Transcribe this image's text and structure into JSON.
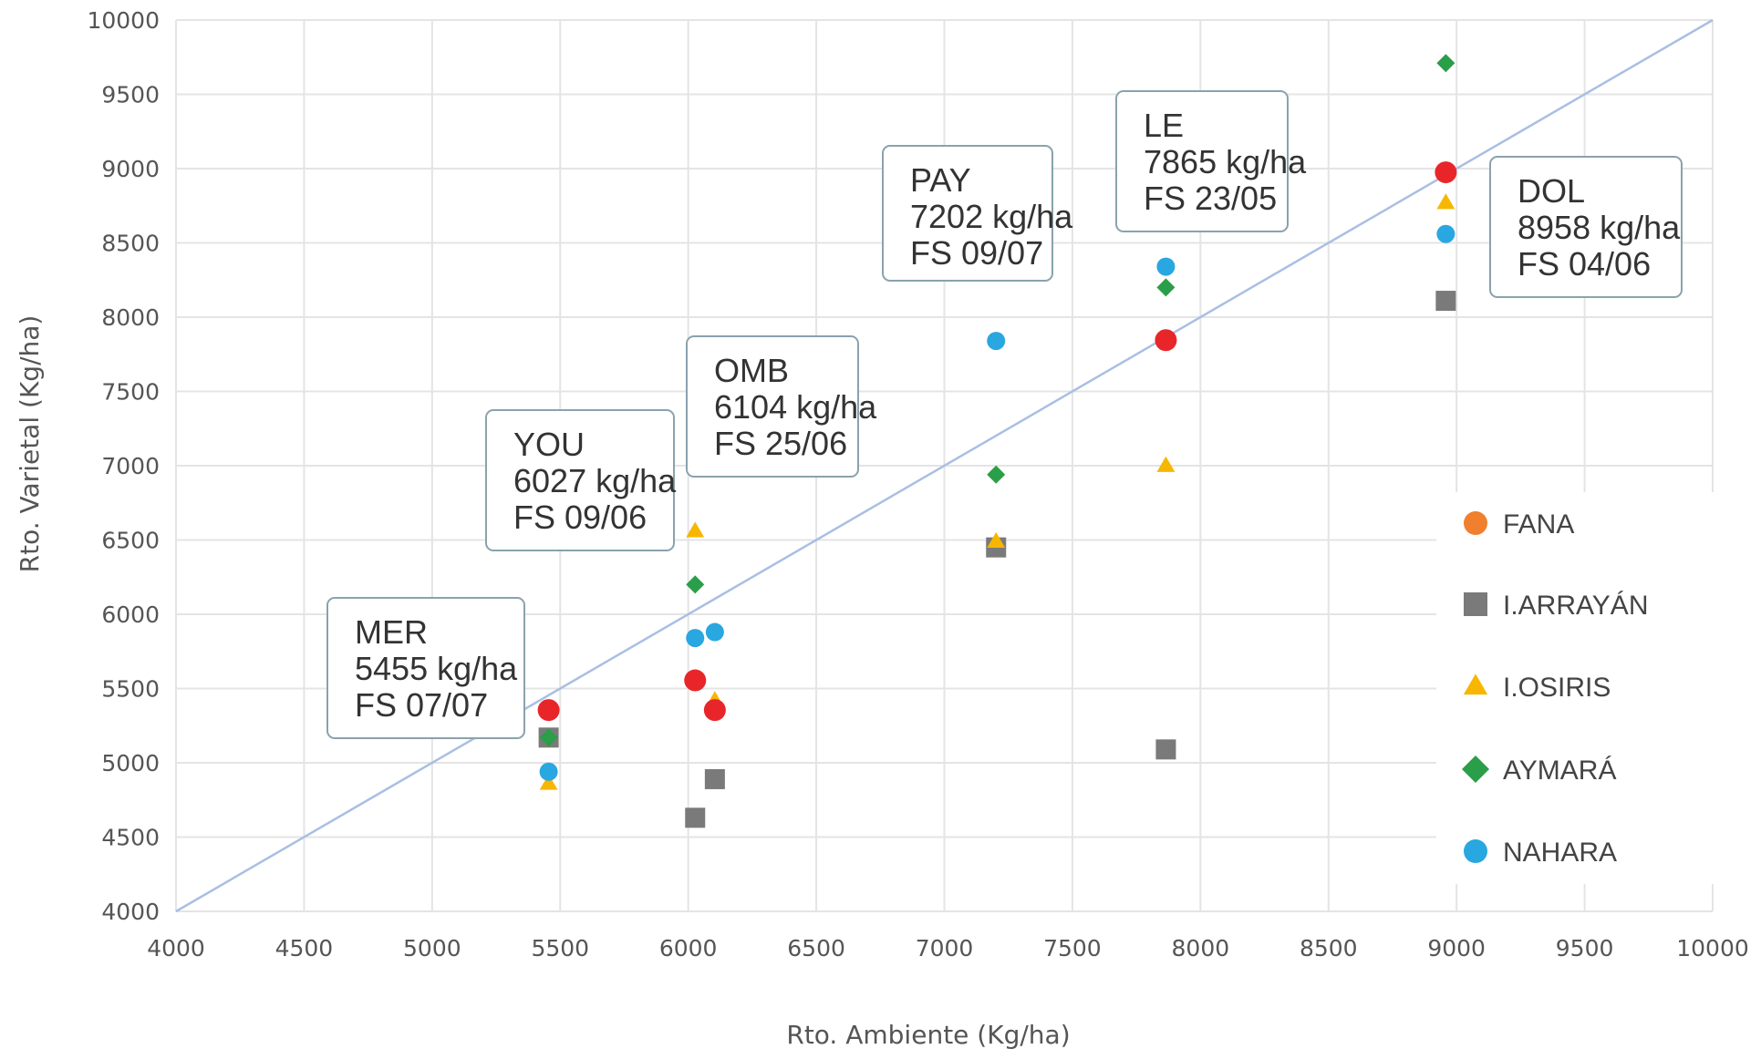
{
  "chart_data": {
    "type": "scatter",
    "xlabel": "Rto. Ambiente (Kg/ha)",
    "ylabel": "Rto. Varietal (Kg/ha)",
    "xlim": [
      4000,
      10000
    ],
    "ylim": [
      4000,
      10000
    ],
    "xticks": [
      "4000",
      "4500",
      "5000",
      "5500",
      "6000",
      "6500",
      "7000",
      "7500",
      "8000",
      "8500",
      "9000",
      "9500",
      "10000"
    ],
    "yticks": [
      "4000",
      "4500",
      "5000",
      "5500",
      "6000",
      "6500",
      "7000",
      "7500",
      "8000",
      "8500",
      "9000",
      "9500",
      "10000"
    ],
    "grid": true,
    "legend_position": "right",
    "reference_line": {
      "from": [
        4000,
        4000
      ],
      "to": [
        10000,
        10000
      ],
      "color": "#a9bfe3"
    },
    "series": [
      {
        "name": "FANA",
        "marker": "circle",
        "legend_color": "#f07f2e",
        "color": "#e8262a",
        "points": [
          [
            5455,
            5355
          ],
          [
            6027,
            5555
          ],
          [
            6104,
            5355
          ],
          [
            7865,
            7845
          ],
          [
            8958,
            8975
          ]
        ]
      },
      {
        "name": "I.ARRAYÁN",
        "marker": "square",
        "color": "#7a7a7a",
        "points": [
          [
            5455,
            5170
          ],
          [
            6027,
            4630
          ],
          [
            6104,
            4890
          ],
          [
            7202,
            6450
          ],
          [
            7865,
            5090
          ],
          [
            8958,
            8110
          ]
        ]
      },
      {
        "name": "I.OSIRIS",
        "marker": "triangle",
        "color": "#f7b600",
        "points": [
          [
            5455,
            4860
          ],
          [
            6027,
            6560
          ],
          [
            6104,
            5420
          ],
          [
            7202,
            6490
          ],
          [
            7865,
            7000
          ],
          [
            8958,
            8770
          ]
        ]
      },
      {
        "name": "AYMARÁ",
        "marker": "diamond",
        "color": "#2a9e48",
        "points": [
          [
            5455,
            5170
          ],
          [
            6027,
            6200
          ],
          [
            6104,
            5370
          ],
          [
            7202,
            6940
          ],
          [
            7865,
            8200
          ],
          [
            8958,
            9710
          ]
        ]
      },
      {
        "name": "NAHARA",
        "marker": "circle",
        "color": "#29a7e1",
        "points": [
          [
            5455,
            4940
          ],
          [
            6027,
            5840
          ],
          [
            6104,
            5880
          ],
          [
            7202,
            7840
          ],
          [
            7865,
            8340
          ],
          [
            8958,
            8560
          ]
        ]
      }
    ],
    "annotations": [
      {
        "lines": [
          "MER",
          "5455 kg/ha",
          "FS 07/07"
        ]
      },
      {
        "lines": [
          "YOU",
          "6027 kg/ha",
          "FS 09/06"
        ]
      },
      {
        "lines": [
          "OMB",
          "6104 kg/ha",
          "FS 25/06"
        ]
      },
      {
        "lines": [
          "PAY",
          "7202 kg/ha",
          "FS 09/07"
        ]
      },
      {
        "lines": [
          "LE",
          "7865 kg/ha",
          "FS 23/05"
        ]
      },
      {
        "lines": [
          "DOL",
          "8958 kg/ha",
          "FS 04/06"
        ]
      }
    ]
  }
}
